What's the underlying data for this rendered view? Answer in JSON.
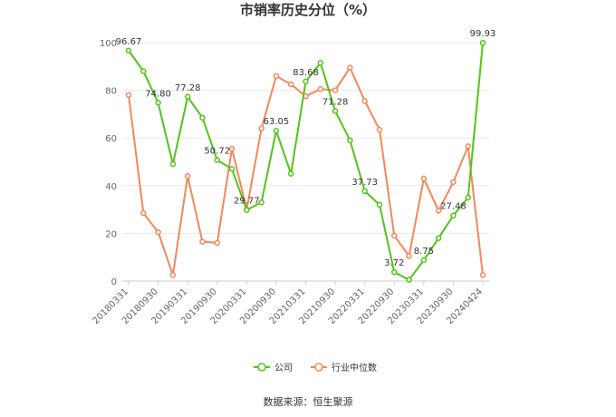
{
  "chart_data": {
    "type": "line",
    "title": "市销率历史分位（%）",
    "source": "数据来源：恒生聚源",
    "xlabel": "",
    "ylabel": "",
    "ylim": [
      0,
      100
    ],
    "yticks": [
      "0",
      "20",
      "40",
      "60",
      "80",
      "100"
    ],
    "x_tick_labels": [
      "20180331",
      "20180930",
      "20190331",
      "20190930",
      "20200331",
      "20200930",
      "20210331",
      "20210930",
      "20220331",
      "20220930",
      "20230331",
      "20230930",
      "20240424"
    ],
    "x": [
      "20180331",
      "20180630",
      "20180930",
      "20181231",
      "20190331",
      "20190630",
      "20190930",
      "20191231",
      "20200331",
      "20200630",
      "20200930",
      "20201231",
      "20210331",
      "20210630",
      "20210930",
      "20211231",
      "20220331",
      "20220630",
      "20220930",
      "20221231",
      "20230331",
      "20230630",
      "20230930",
      "20231231",
      "20240424"
    ],
    "legend_position": "bottom",
    "grid": true,
    "series": [
      {
        "name": "公司",
        "color": "#52c41a",
        "values": [
          96.67,
          88.0,
          74.8,
          49.0,
          77.28,
          68.5,
          50.72,
          47.0,
          29.77,
          33.0,
          63.05,
          45.0,
          83.68,
          91.5,
          71.28,
          59.0,
          37.73,
          32.0,
          3.72,
          0.5,
          8.75,
          18.0,
          27.48,
          35.0,
          99.93
        ]
      },
      {
        "name": "行业中位数",
        "color": "#f4875a",
        "values": [
          78.0,
          28.5,
          20.5,
          2.5,
          44.0,
          16.5,
          16.0,
          55.5,
          30.0,
          64.0,
          86.0,
          82.5,
          77.5,
          80.5,
          80.0,
          89.5,
          75.5,
          63.5,
          19.0,
          10.5,
          43.0,
          29.5,
          41.5,
          56.5,
          2.5
        ]
      }
    ],
    "data_labels": [
      {
        "index": 0,
        "text": "96.67"
      },
      {
        "index": 2,
        "text": "74.80"
      },
      {
        "index": 4,
        "text": "77.28"
      },
      {
        "index": 6,
        "text": "50.72"
      },
      {
        "index": 8,
        "text": "29.77"
      },
      {
        "index": 10,
        "text": "63.05"
      },
      {
        "index": 12,
        "text": "83.68"
      },
      {
        "index": 14,
        "text": "71.28"
      },
      {
        "index": 16,
        "text": "37.73"
      },
      {
        "index": 18,
        "text": "3.72"
      },
      {
        "index": 20,
        "text": "8.75"
      },
      {
        "index": 22,
        "text": "27.48"
      },
      {
        "index": 24,
        "text": "99.93"
      }
    ]
  }
}
